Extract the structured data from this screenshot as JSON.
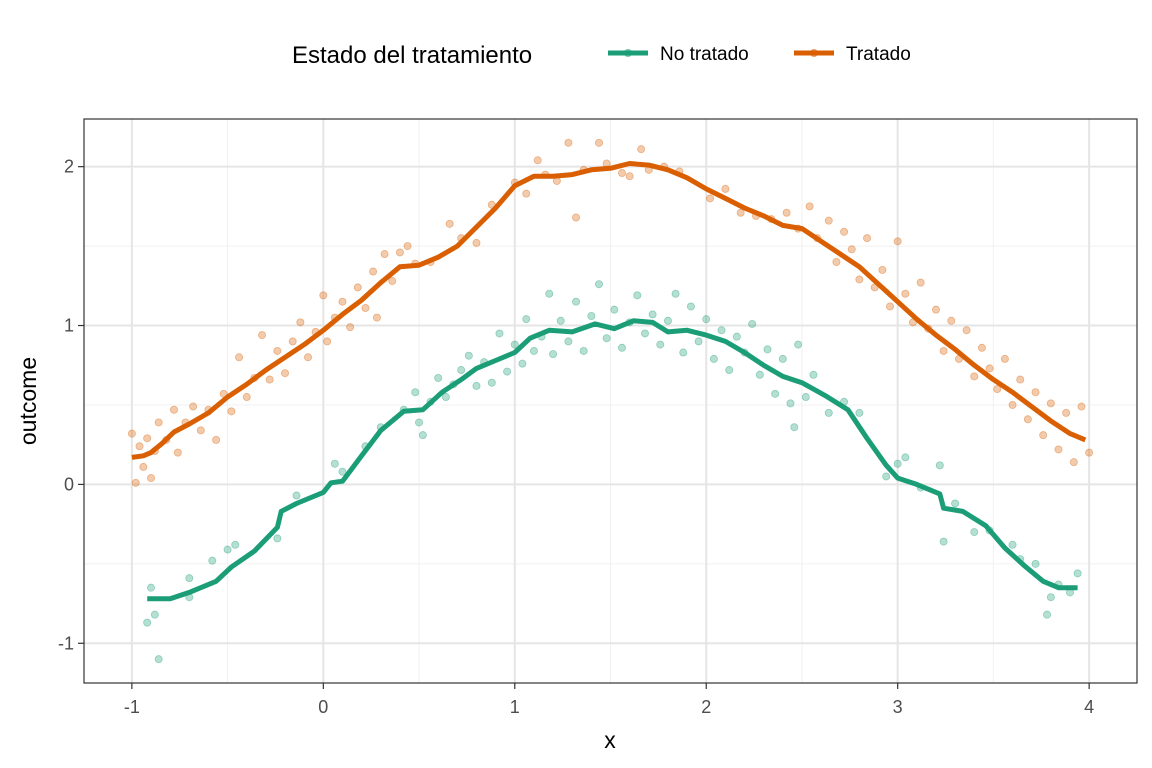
{
  "chart_data": {
    "type": "scatter",
    "xlabel": "x",
    "ylabel": "outcome",
    "xlim": [
      -1.25,
      4.25
    ],
    "ylim": [
      -1.25,
      2.3
    ],
    "xticks": [
      -1,
      0,
      1,
      2,
      3,
      4
    ],
    "yticks": [
      -1,
      0,
      1,
      2
    ],
    "grid": true,
    "legend": {
      "title": "Estado del tratamiento",
      "position": "top"
    },
    "series": [
      {
        "name": "No tratado",
        "color": "#1B9E77",
        "line": [
          [
            -0.92,
            -0.72
          ],
          [
            -0.8,
            -0.72
          ],
          [
            -0.7,
            -0.68
          ],
          [
            -0.56,
            -0.61
          ],
          [
            -0.48,
            -0.52
          ],
          [
            -0.36,
            -0.42
          ],
          [
            -0.24,
            -0.27
          ],
          [
            -0.22,
            -0.17
          ],
          [
            -0.14,
            -0.12
          ],
          [
            0.0,
            -0.05
          ],
          [
            0.04,
            0.01
          ],
          [
            0.1,
            0.02
          ],
          [
            0.2,
            0.18
          ],
          [
            0.3,
            0.34
          ],
          [
            0.42,
            0.46
          ],
          [
            0.52,
            0.47
          ],
          [
            0.62,
            0.58
          ],
          [
            0.72,
            0.66
          ],
          [
            0.8,
            0.73
          ],
          [
            0.9,
            0.78
          ],
          [
            1.0,
            0.83
          ],
          [
            1.08,
            0.92
          ],
          [
            1.18,
            0.97
          ],
          [
            1.3,
            0.96
          ],
          [
            1.42,
            1.01
          ],
          [
            1.52,
            0.98
          ],
          [
            1.62,
            1.03
          ],
          [
            1.72,
            1.02
          ],
          [
            1.8,
            0.96
          ],
          [
            1.9,
            0.97
          ],
          [
            2.0,
            0.94
          ],
          [
            2.1,
            0.9
          ],
          [
            2.2,
            0.83
          ],
          [
            2.3,
            0.75
          ],
          [
            2.4,
            0.68
          ],
          [
            2.5,
            0.64
          ],
          [
            2.62,
            0.56
          ],
          [
            2.74,
            0.47
          ],
          [
            2.84,
            0.29
          ],
          [
            2.94,
            0.12
          ],
          [
            3.0,
            0.04
          ],
          [
            3.1,
            0.0
          ],
          [
            3.22,
            -0.06
          ],
          [
            3.24,
            -0.15
          ],
          [
            3.34,
            -0.17
          ],
          [
            3.46,
            -0.26
          ],
          [
            3.56,
            -0.4
          ],
          [
            3.66,
            -0.51
          ],
          [
            3.76,
            -0.61
          ],
          [
            3.84,
            -0.65
          ],
          [
            3.94,
            -0.65
          ]
        ],
        "points": [
          [
            -0.9,
            -0.65
          ],
          [
            -0.92,
            -0.87
          ],
          [
            -0.88,
            -0.82
          ],
          [
            -0.86,
            -1.1
          ],
          [
            -0.7,
            -0.59
          ],
          [
            -0.7,
            -0.71
          ],
          [
            -0.58,
            -0.48
          ],
          [
            -0.5,
            -0.41
          ],
          [
            -0.46,
            -0.38
          ],
          [
            -0.24,
            -0.34
          ],
          [
            -0.14,
            -0.07
          ],
          [
            0.06,
            0.13
          ],
          [
            0.1,
            0.08
          ],
          [
            0.22,
            0.24
          ],
          [
            0.3,
            0.36
          ],
          [
            0.42,
            0.47
          ],
          [
            0.48,
            0.58
          ],
          [
            0.5,
            0.39
          ],
          [
            0.52,
            0.31
          ],
          [
            0.56,
            0.52
          ],
          [
            0.6,
            0.67
          ],
          [
            0.64,
            0.55
          ],
          [
            0.68,
            0.63
          ],
          [
            0.72,
            0.72
          ],
          [
            0.76,
            0.81
          ],
          [
            0.8,
            0.62
          ],
          [
            0.84,
            0.77
          ],
          [
            0.88,
            0.64
          ],
          [
            0.92,
            0.95
          ],
          [
            0.96,
            0.71
          ],
          [
            1.0,
            0.88
          ],
          [
            1.04,
            0.76
          ],
          [
            1.06,
            1.04
          ],
          [
            1.1,
            0.84
          ],
          [
            1.14,
            0.93
          ],
          [
            1.18,
            1.2
          ],
          [
            1.2,
            0.82
          ],
          [
            1.24,
            1.03
          ],
          [
            1.28,
            0.9
          ],
          [
            1.32,
            1.15
          ],
          [
            1.36,
            0.84
          ],
          [
            1.4,
            1.06
          ],
          [
            1.44,
            1.26
          ],
          [
            1.48,
            0.92
          ],
          [
            1.52,
            1.1
          ],
          [
            1.56,
            0.86
          ],
          [
            1.6,
            1.02
          ],
          [
            1.64,
            1.19
          ],
          [
            1.68,
            0.95
          ],
          [
            1.72,
            1.07
          ],
          [
            1.76,
            0.88
          ],
          [
            1.8,
            1.03
          ],
          [
            1.84,
            1.2
          ],
          [
            1.88,
            0.83
          ],
          [
            1.92,
            1.12
          ],
          [
            1.96,
            0.9
          ],
          [
            2.0,
            1.04
          ],
          [
            2.04,
            0.79
          ],
          [
            2.08,
            0.97
          ],
          [
            2.12,
            0.72
          ],
          [
            2.16,
            0.93
          ],
          [
            2.2,
            0.83
          ],
          [
            2.24,
            1.01
          ],
          [
            2.28,
            0.69
          ],
          [
            2.32,
            0.85
          ],
          [
            2.36,
            0.57
          ],
          [
            2.4,
            0.79
          ],
          [
            2.44,
            0.51
          ],
          [
            2.46,
            0.36
          ],
          [
            2.48,
            0.88
          ],
          [
            2.52,
            0.55
          ],
          [
            2.56,
            0.69
          ],
          [
            2.64,
            0.45
          ],
          [
            2.72,
            0.52
          ],
          [
            2.8,
            0.45
          ],
          [
            2.94,
            0.05
          ],
          [
            3.0,
            0.13
          ],
          [
            3.04,
            0.17
          ],
          [
            3.12,
            -0.02
          ],
          [
            3.22,
            0.12
          ],
          [
            3.24,
            -0.36
          ],
          [
            3.3,
            -0.12
          ],
          [
            3.4,
            -0.3
          ],
          [
            3.48,
            -0.29
          ],
          [
            3.6,
            -0.38
          ],
          [
            3.64,
            -0.47
          ],
          [
            3.72,
            -0.5
          ],
          [
            3.78,
            -0.82
          ],
          [
            3.8,
            -0.71
          ],
          [
            3.84,
            -0.63
          ],
          [
            3.9,
            -0.68
          ],
          [
            3.94,
            -0.56
          ]
        ]
      },
      {
        "name": "Tratado",
        "color": "#D95F02",
        "line": [
          [
            -1.0,
            0.17
          ],
          [
            -0.94,
            0.18
          ],
          [
            -0.9,
            0.2
          ],
          [
            -0.84,
            0.26
          ],
          [
            -0.78,
            0.33
          ],
          [
            -0.7,
            0.38
          ],
          [
            -0.6,
            0.45
          ],
          [
            -0.5,
            0.55
          ],
          [
            -0.4,
            0.63
          ],
          [
            -0.3,
            0.72
          ],
          [
            -0.2,
            0.8
          ],
          [
            -0.1,
            0.88
          ],
          [
            0.0,
            0.97
          ],
          [
            0.1,
            1.07
          ],
          [
            0.2,
            1.16
          ],
          [
            0.3,
            1.27
          ],
          [
            0.4,
            1.37
          ],
          [
            0.5,
            1.38
          ],
          [
            0.6,
            1.43
          ],
          [
            0.7,
            1.5
          ],
          [
            0.8,
            1.62
          ],
          [
            0.9,
            1.74
          ],
          [
            1.0,
            1.88
          ],
          [
            1.1,
            1.94
          ],
          [
            1.2,
            1.94
          ],
          [
            1.3,
            1.95
          ],
          [
            1.4,
            1.98
          ],
          [
            1.5,
            1.99
          ],
          [
            1.6,
            2.02
          ],
          [
            1.7,
            2.01
          ],
          [
            1.8,
            1.98
          ],
          [
            1.9,
            1.93
          ],
          [
            2.0,
            1.86
          ],
          [
            2.1,
            1.8
          ],
          [
            2.2,
            1.74
          ],
          [
            2.3,
            1.69
          ],
          [
            2.4,
            1.63
          ],
          [
            2.5,
            1.61
          ],
          [
            2.6,
            1.53
          ],
          [
            2.7,
            1.45
          ],
          [
            2.8,
            1.37
          ],
          [
            2.9,
            1.26
          ],
          [
            3.0,
            1.15
          ],
          [
            3.1,
            1.04
          ],
          [
            3.2,
            0.94
          ],
          [
            3.3,
            0.85
          ],
          [
            3.4,
            0.75
          ],
          [
            3.5,
            0.66
          ],
          [
            3.6,
            0.58
          ],
          [
            3.7,
            0.49
          ],
          [
            3.8,
            0.4
          ],
          [
            3.9,
            0.32
          ],
          [
            3.98,
            0.28
          ]
        ],
        "points": [
          [
            -1.0,
            0.32
          ],
          [
            -0.98,
            0.01
          ],
          [
            -0.96,
            0.24
          ],
          [
            -0.94,
            0.11
          ],
          [
            -0.92,
            0.29
          ],
          [
            -0.9,
            0.04
          ],
          [
            -0.88,
            0.21
          ],
          [
            -0.86,
            0.39
          ],
          [
            -0.82,
            0.28
          ],
          [
            -0.78,
            0.47
          ],
          [
            -0.76,
            0.2
          ],
          [
            -0.72,
            0.39
          ],
          [
            -0.68,
            0.49
          ],
          [
            -0.64,
            0.34
          ],
          [
            -0.6,
            0.47
          ],
          [
            -0.56,
            0.28
          ],
          [
            -0.52,
            0.57
          ],
          [
            -0.48,
            0.46
          ],
          [
            -0.44,
            0.8
          ],
          [
            -0.4,
            0.55
          ],
          [
            -0.36,
            0.67
          ],
          [
            -0.32,
            0.94
          ],
          [
            -0.28,
            0.66
          ],
          [
            -0.24,
            0.84
          ],
          [
            -0.2,
            0.7
          ],
          [
            -0.16,
            0.9
          ],
          [
            -0.12,
            1.02
          ],
          [
            -0.08,
            0.8
          ],
          [
            -0.04,
            0.96
          ],
          [
            0.0,
            1.19
          ],
          [
            0.02,
            0.9
          ],
          [
            0.06,
            1.05
          ],
          [
            0.1,
            1.15
          ],
          [
            0.14,
            0.99
          ],
          [
            0.18,
            1.24
          ],
          [
            0.22,
            1.11
          ],
          [
            0.26,
            1.34
          ],
          [
            0.28,
            1.05
          ],
          [
            0.32,
            1.45
          ],
          [
            0.36,
            1.28
          ],
          [
            0.4,
            1.46
          ],
          [
            0.44,
            1.5
          ],
          [
            0.48,
            1.39
          ],
          [
            0.56,
            1.4
          ],
          [
            0.66,
            1.64
          ],
          [
            0.72,
            1.55
          ],
          [
            0.8,
            1.52
          ],
          [
            0.88,
            1.76
          ],
          [
            1.0,
            1.9
          ],
          [
            1.06,
            1.83
          ],
          [
            1.12,
            2.04
          ],
          [
            1.16,
            1.95
          ],
          [
            1.22,
            1.91
          ],
          [
            1.28,
            2.15
          ],
          [
            1.32,
            1.68
          ],
          [
            1.36,
            1.98
          ],
          [
            1.44,
            2.15
          ],
          [
            1.48,
            2.02
          ],
          [
            1.56,
            1.96
          ],
          [
            1.6,
            1.94
          ],
          [
            1.66,
            2.11
          ],
          [
            1.7,
            1.98
          ],
          [
            1.78,
            2.0
          ],
          [
            1.86,
            1.97
          ],
          [
            2.02,
            1.8
          ],
          [
            2.1,
            1.86
          ],
          [
            2.18,
            1.71
          ],
          [
            2.26,
            1.69
          ],
          [
            2.34,
            1.67
          ],
          [
            2.42,
            1.71
          ],
          [
            2.48,
            1.61
          ],
          [
            2.54,
            1.75
          ],
          [
            2.58,
            1.55
          ],
          [
            2.64,
            1.66
          ],
          [
            2.68,
            1.4
          ],
          [
            2.72,
            1.59
          ],
          [
            2.76,
            1.48
          ],
          [
            2.8,
            1.29
          ],
          [
            2.84,
            1.55
          ],
          [
            2.88,
            1.24
          ],
          [
            2.92,
            1.35
          ],
          [
            2.96,
            1.12
          ],
          [
            3.0,
            1.53
          ],
          [
            3.04,
            1.2
          ],
          [
            3.08,
            1.02
          ],
          [
            3.12,
            1.27
          ],
          [
            3.16,
            0.98
          ],
          [
            3.2,
            1.1
          ],
          [
            3.24,
            0.84
          ],
          [
            3.28,
            1.03
          ],
          [
            3.32,
            0.79
          ],
          [
            3.36,
            0.97
          ],
          [
            3.4,
            0.68
          ],
          [
            3.44,
            0.86
          ],
          [
            3.48,
            0.73
          ],
          [
            3.52,
            0.6
          ],
          [
            3.56,
            0.79
          ],
          [
            3.6,
            0.5
          ],
          [
            3.64,
            0.66
          ],
          [
            3.68,
            0.41
          ],
          [
            3.72,
            0.58
          ],
          [
            3.76,
            0.31
          ],
          [
            3.8,
            0.51
          ],
          [
            3.84,
            0.22
          ],
          [
            3.88,
            0.45
          ],
          [
            3.92,
            0.14
          ],
          [
            3.96,
            0.49
          ],
          [
            4.0,
            0.2
          ]
        ]
      }
    ]
  }
}
